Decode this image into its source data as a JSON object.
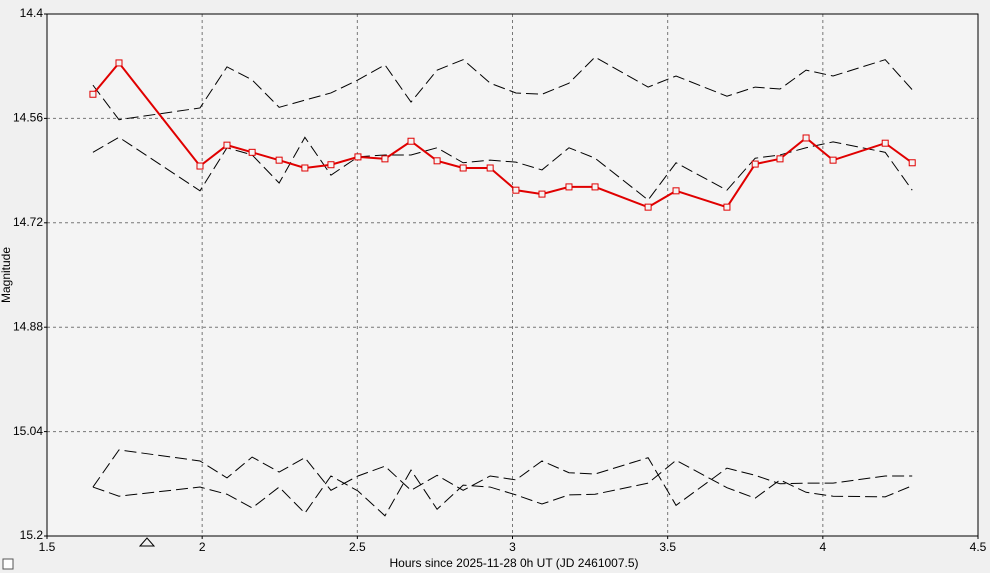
{
  "chart_data": {
    "type": "line",
    "x_label": "Hours since 2025-11-28 0h UT (JD 2461007.5)",
    "y_label": "Magnitude",
    "x": [
      1.648,
      1.732,
      1.993,
      2.08,
      2.161,
      2.248,
      2.331,
      2.415,
      2.502,
      2.589,
      2.673,
      2.757,
      2.841,
      2.928,
      3.011,
      3.095,
      3.182,
      3.266,
      3.437,
      3.527,
      3.691,
      3.782,
      3.862,
      3.946,
      4.033,
      4.201,
      4.288
    ],
    "series": [
      {
        "color": "#000000",
        "dash": true,
        "values": [
          14.509,
          14.562,
          14.544,
          14.481,
          14.501,
          14.543,
          14.532,
          14.521,
          14.501,
          14.478,
          14.535,
          14.486,
          14.47,
          14.506,
          14.521,
          14.523,
          14.506,
          14.466,
          14.512,
          14.495,
          14.526,
          14.512,
          14.515,
          14.486,
          14.495,
          14.47,
          14.516
        ]
      },
      {
        "color": "#000000",
        "dash": true,
        "values": [
          14.612,
          14.589,
          14.671,
          14.605,
          14.616,
          14.659,
          14.589,
          14.647,
          14.619,
          14.616,
          14.616,
          14.605,
          14.628,
          14.624,
          14.627,
          14.639,
          14.605,
          14.621,
          14.685,
          14.628,
          14.67,
          14.621,
          14.616,
          14.605,
          14.596,
          14.612,
          14.67
        ]
      },
      {
        "color": "#000000",
        "dash": true,
        "values": [
          15.125,
          15.068,
          15.085,
          15.111,
          15.079,
          15.102,
          15.08,
          15.13,
          15.108,
          15.093,
          15.13,
          15.107,
          15.13,
          15.108,
          15.114,
          15.085,
          15.103,
          15.105,
          15.08,
          15.153,
          15.096,
          15.107,
          15.12,
          15.119,
          15.119,
          15.108,
          15.108
        ]
      },
      {
        "color": "#000000",
        "dash": true,
        "values": [
          15.125,
          15.139,
          15.125,
          15.136,
          15.157,
          15.125,
          15.165,
          15.108,
          15.131,
          15.169,
          15.099,
          15.159,
          15.122,
          15.125,
          15.137,
          15.151,
          15.137,
          15.136,
          15.119,
          15.084,
          15.126,
          15.142,
          15.114,
          15.133,
          15.139,
          15.14,
          15.123
        ]
      },
      {
        "color": "#e00000",
        "dash": false,
        "marker": "square",
        "values": [
          14.523,
          14.475,
          14.633,
          14.601,
          14.612,
          14.624,
          14.636,
          14.631,
          14.619,
          14.622,
          14.595,
          14.625,
          14.636,
          14.636,
          14.67,
          14.676,
          14.665,
          14.665,
          14.696,
          14.671,
          14.696,
          14.63,
          14.622,
          14.59,
          14.624,
          14.598,
          14.628
        ]
      }
    ],
    "xlim": [
      1.5,
      4.5
    ],
    "xticks": [
      1.5,
      2,
      2.5,
      3,
      3.5,
      4,
      4.5
    ],
    "ylim": [
      14.4,
      15.2
    ],
    "yticks": [
      14.4,
      14.56,
      14.72,
      14.88,
      15.04,
      15.2
    ],
    "y_inverted": true,
    "grid": true
  }
}
